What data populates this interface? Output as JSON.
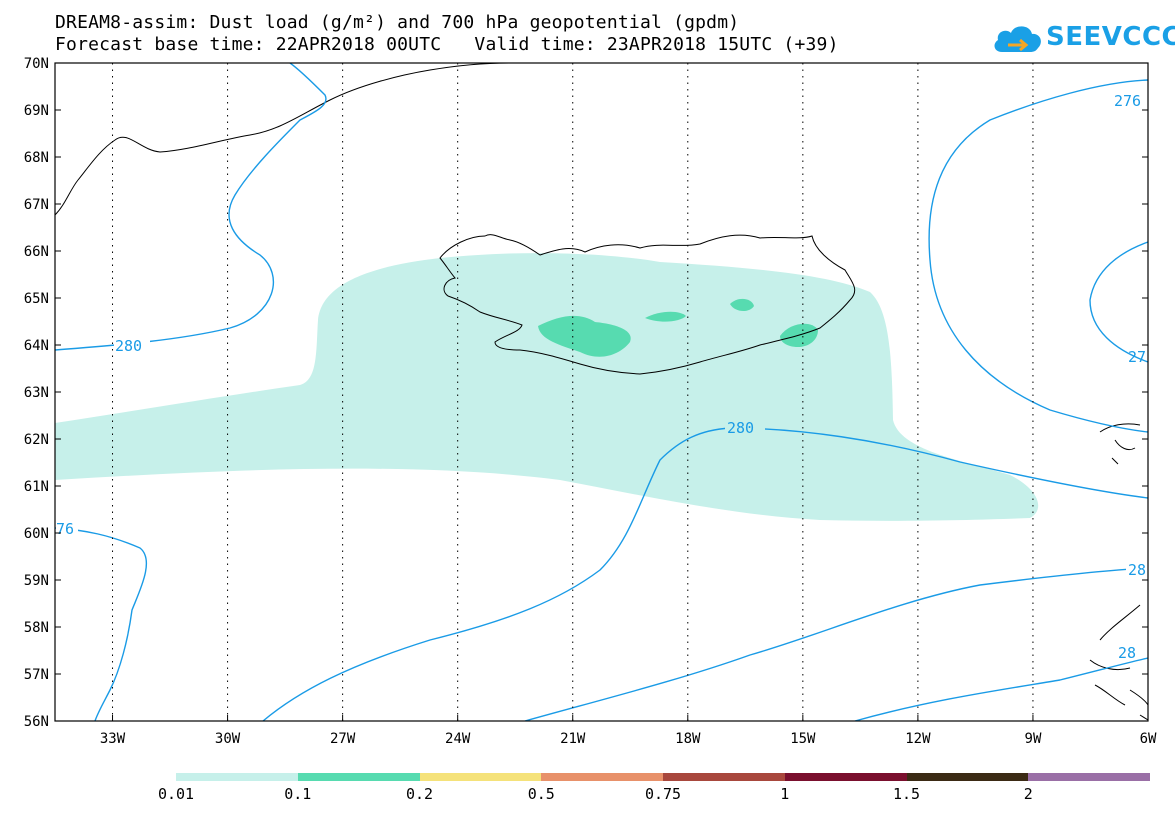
{
  "title": {
    "line1": "DREAM8-assim: Dust load (g/m²) and 700 hPa geopotential (gpdm)",
    "line2": "Forecast base time: 22APR2018 00UTC   Valid time: 23APR2018 15UTC (+39)"
  },
  "logo": {
    "text": "SEEVCCC",
    "icon": "cloud-logo-icon",
    "color": "#1aa0e6"
  },
  "map": {
    "lat_labels": [
      "70N",
      "69N",
      "68N",
      "67N",
      "66N",
      "65N",
      "64N",
      "63N",
      "62N",
      "61N",
      "60N",
      "59N",
      "58N",
      "57N",
      "56N"
    ],
    "lon_labels": [
      "33W",
      "30W",
      "27W",
      "24W",
      "21W",
      "18W",
      "15W",
      "12W",
      "9W",
      "6W"
    ],
    "lat_range": [
      56,
      70
    ],
    "lon_range": [
      -34.5,
      -6
    ],
    "grid": "dotted",
    "contour_color": "#1a9be6",
    "contour_labels": [
      "276",
      "280",
      "280",
      "27",
      "76",
      "28",
      "28"
    ]
  },
  "colorbar": {
    "labels": [
      "0.01",
      "0.1",
      "0.2",
      "0.5",
      "0.75",
      "1",
      "1.5",
      "2"
    ],
    "colors": [
      "#c6f0ea",
      "#57dbb0",
      "#f5e27a",
      "#e8916a",
      "#a8473d",
      "#7a0f2e",
      "#3b2a14",
      "#9a6fa6"
    ]
  }
}
